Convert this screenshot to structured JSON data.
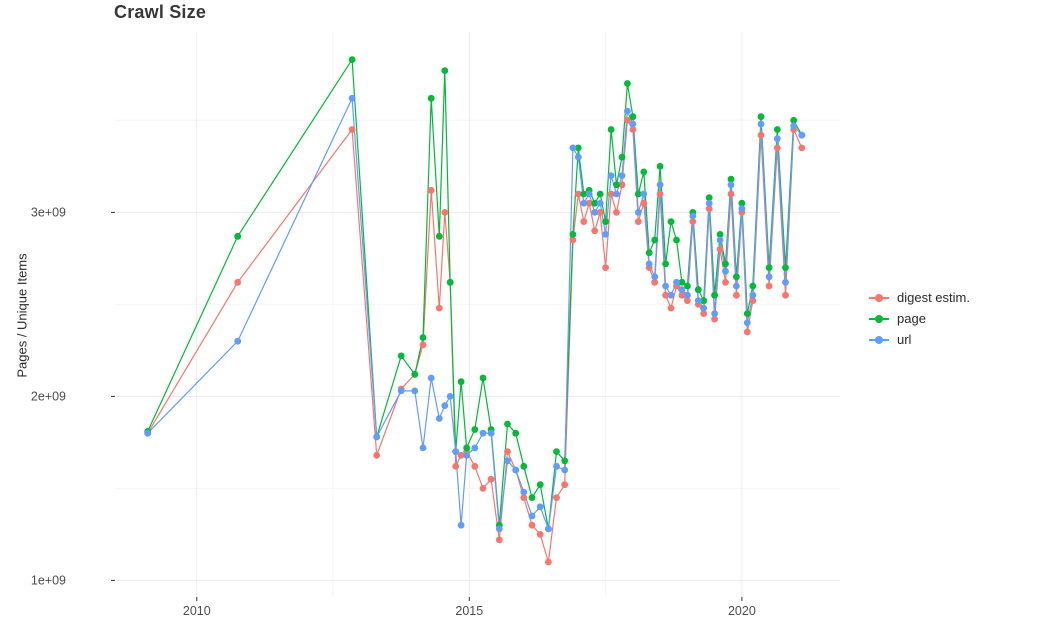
{
  "chart_data": {
    "type": "line",
    "title": "Crawl Size",
    "xlabel": "",
    "ylabel": "Pages / Unique Items",
    "grid": true,
    "legend_position": "right",
    "xlim": [
      2008.5,
      2021.8
    ],
    "ylim": [
      910000000,
      3980000000
    ],
    "x_ticks": {
      "values": [
        2010,
        2015,
        2020
      ],
      "labels": [
        "2010",
        "2015",
        "2020"
      ]
    },
    "x_minor_ticks": [
      2012.5,
      2017.5
    ],
    "y_ticks": {
      "values": [
        1000000000.0,
        2000000000.0,
        3000000000.0
      ],
      "labels": [
        "1e+09",
        "2e+09",
        "3e+09"
      ]
    },
    "y_minor_ticks": [
      1500000000.0,
      2500000000.0,
      3500000000.0
    ],
    "x": [
      2009.1,
      2010.75,
      2012.85,
      2013.3,
      2013.75,
      2014.0,
      2014.15,
      2014.3,
      2014.45,
      2014.55,
      2014.65,
      2014.75,
      2014.85,
      2014.95,
      2015.1,
      2015.25,
      2015.4,
      2015.55,
      2015.7,
      2015.85,
      2016.0,
      2016.15,
      2016.3,
      2016.45,
      2016.6,
      2016.75,
      2016.9,
      2017.0,
      2017.1,
      2017.2,
      2017.3,
      2017.4,
      2017.5,
      2017.6,
      2017.7,
      2017.8,
      2017.9,
      2018.0,
      2018.1,
      2018.2,
      2018.3,
      2018.4,
      2018.5,
      2018.6,
      2018.7,
      2018.8,
      2018.9,
      2019.0,
      2019.1,
      2019.2,
      2019.3,
      2019.4,
      2019.5,
      2019.6,
      2019.7,
      2019.8,
      2019.9,
      2020.0,
      2020.1,
      2020.2,
      2020.35,
      2020.5,
      2020.65,
      2020.8,
      2020.95,
      2021.1
    ],
    "series": [
      {
        "name": "digest estim.",
        "color": "#F8766D",
        "values": [
          1800000000.0,
          2620000000.0,
          3450000000.0,
          1680000000.0,
          2040000000.0,
          2120000000.0,
          2280000000.0,
          3120000000.0,
          2480000000.0,
          3000000000.0,
          2620000000.0,
          1620000000.0,
          1680000000.0,
          1700000000.0,
          1620000000.0,
          1500000000.0,
          1550000000.0,
          1220000000.0,
          1700000000.0,
          1600000000.0,
          1450000000.0,
          1300000000.0,
          1250000000.0,
          1100000000.0,
          1450000000.0,
          1520000000.0,
          2850000000.0,
          3100000000.0,
          2950000000.0,
          3050000000.0,
          2900000000.0,
          3000000000.0,
          2700000000.0,
          3100000000.0,
          3000000000.0,
          3150000000.0,
          3500000000.0,
          3450000000.0,
          2950000000.0,
          3050000000.0,
          2700000000.0,
          2620000000.0,
          3100000000.0,
          2550000000.0,
          2480000000.0,
          2600000000.0,
          2550000000.0,
          2520000000.0,
          2950000000.0,
          2500000000.0,
          2450000000.0,
          3020000000.0,
          2420000000.0,
          2800000000.0,
          2620000000.0,
          3100000000.0,
          2550000000.0,
          3000000000.0,
          2350000000.0,
          2520000000.0,
          3420000000.0,
          2600000000.0,
          3350000000.0,
          2550000000.0,
          3450000000.0,
          3350000000.0
        ]
      },
      {
        "name": "page",
        "color": "#00BA38",
        "values": [
          1810000000.0,
          2870000000.0,
          3830000000.0,
          1780000000.0,
          2220000000.0,
          2120000000.0,
          2320000000.0,
          3620000000.0,
          2870000000.0,
          3770000000.0,
          2620000000.0,
          1700000000.0,
          2080000000.0,
          1720000000.0,
          1820000000.0,
          2100000000.0,
          1820000000.0,
          1300000000.0,
          1850000000.0,
          1800000000.0,
          1620000000.0,
          1450000000.0,
          1520000000.0,
          1280000000.0,
          1700000000.0,
          1650000000.0,
          2880000000.0,
          3350000000.0,
          3100000000.0,
          3120000000.0,
          3050000000.0,
          3100000000.0,
          2950000000.0,
          3450000000.0,
          3150000000.0,
          3300000000.0,
          3700000000.0,
          3520000000.0,
          3100000000.0,
          3220000000.0,
          2780000000.0,
          2850000000.0,
          3250000000.0,
          2720000000.0,
          2950000000.0,
          2850000000.0,
          2620000000.0,
          2600000000.0,
          3000000000.0,
          2580000000.0,
          2520000000.0,
          3080000000.0,
          2550000000.0,
          2880000000.0,
          2720000000.0,
          3180000000.0,
          2650000000.0,
          3050000000.0,
          2450000000.0,
          2600000000.0,
          3520000000.0,
          2700000000.0,
          3450000000.0,
          2700000000.0,
          3500000000.0,
          3420000000.0
        ]
      },
      {
        "name": "url",
        "color": "#619CFF",
        "values": [
          1800000000.0,
          2300000000.0,
          3620000000.0,
          1780000000.0,
          2030000000.0,
          2030000000.0,
          1720000000.0,
          2100000000.0,
          1880000000.0,
          1950000000.0,
          2000000000.0,
          1700000000.0,
          1300000000.0,
          1680000000.0,
          1720000000.0,
          1800000000.0,
          1800000000.0,
          1280000000.0,
          1650000000.0,
          1600000000.0,
          1480000000.0,
          1350000000.0,
          1400000000.0,
          1280000000.0,
          1620000000.0,
          1600000000.0,
          3350000000.0,
          3300000000.0,
          3050000000.0,
          3100000000.0,
          3000000000.0,
          3050000000.0,
          2880000000.0,
          3200000000.0,
          3100000000.0,
          3200000000.0,
          3550000000.0,
          3480000000.0,
          3000000000.0,
          3100000000.0,
          2720000000.0,
          2650000000.0,
          3150000000.0,
          2600000000.0,
          2550000000.0,
          2620000000.0,
          2580000000.0,
          2550000000.0,
          2980000000.0,
          2520000000.0,
          2480000000.0,
          3050000000.0,
          2450000000.0,
          2850000000.0,
          2680000000.0,
          3150000000.0,
          2600000000.0,
          3020000000.0,
          2400000000.0,
          2550000000.0,
          3480000000.0,
          2650000000.0,
          3400000000.0,
          2620000000.0,
          3470000000.0,
          3420000000.0
        ]
      }
    ]
  }
}
